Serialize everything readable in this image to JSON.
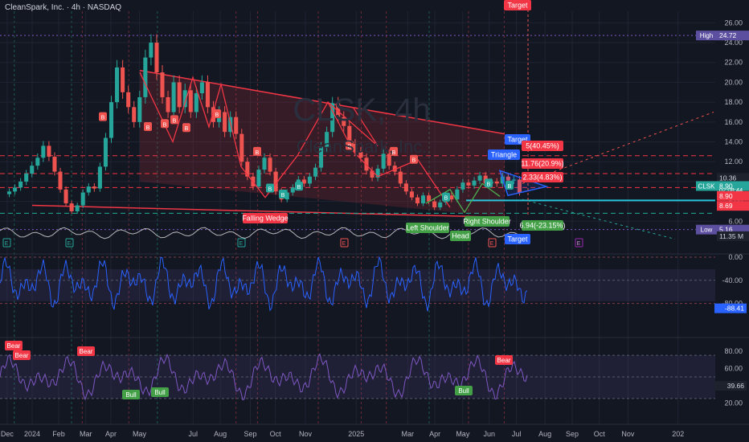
{
  "header": {
    "title": "CleanSpark, Inc. · 4h · NASDAQ"
  },
  "watermark": {
    "line1": "CLSK, 4h",
    "line2": "CleanSpark, Inc."
  },
  "colors": {
    "bg": "#131722",
    "up": "#26a69a",
    "down": "#ef5350",
    "grid": "#1f2433",
    "wedge": "#f23645",
    "blue": "#2962ff",
    "purple": "#7e57c2",
    "text": "#b2b5be"
  },
  "chart_data": [
    {
      "type": "candlestick",
      "ticker": "CLSK",
      "ylim": [
        4,
        27
      ],
      "y_ticks": [
        6,
        8,
        10,
        12,
        14,
        16,
        18,
        20,
        22,
        24,
        26
      ],
      "x_ticks": [
        "Dec",
        "2024",
        "Feb",
        "Mar",
        "Apr",
        "May",
        "Jul",
        "Aug",
        "Sep",
        "Oct",
        "Nov",
        "2025",
        "Mar",
        "Apr",
        "May",
        "Jun",
        "Jul",
        "Aug",
        "Sep",
        "Oct",
        "Nov",
        "202"
      ],
      "x_tick_pos": [
        0.01,
        0.045,
        0.082,
        0.12,
        0.155,
        0.195,
        0.27,
        0.308,
        0.35,
        0.385,
        0.427,
        0.498,
        0.57,
        0.608,
        0.647,
        0.684,
        0.722,
        0.762,
        0.8,
        0.838,
        0.878,
        0.948
      ],
      "close": [
        9.0,
        9.4,
        10.0,
        10.8,
        11.6,
        12.4,
        13.6,
        12.5,
        11.0,
        9.2,
        7.8,
        7.0,
        7.6,
        8.9,
        9.5,
        9.3,
        11.5,
        14.4,
        18.0,
        21.5,
        19.0,
        17.5,
        16.0,
        18.5,
        22.5,
        24.0,
        21.0,
        18.5,
        17.0,
        20.0,
        17.5,
        19.2,
        17.0,
        18.9,
        20.0,
        17.5,
        16.0,
        17.0,
        15.0,
        16.5,
        14.8,
        12.0,
        10.5,
        9.5,
        11.2,
        12.4,
        11.0,
        9.0,
        8.2,
        8.9,
        9.4,
        10.2,
        9.8,
        10.5,
        11.4,
        13.5,
        15.0,
        17.9,
        16.5,
        15.6,
        13.8,
        13.0,
        12.4,
        11.1,
        10.4,
        11.3,
        12.8,
        11.6,
        11.0,
        9.8,
        9.0,
        8.4,
        7.8,
        8.6,
        8.0,
        7.4,
        7.9,
        8.6,
        8.2,
        9.2,
        9.9,
        9.6,
        10.1,
        10.6,
        9.8,
        10.0,
        9.8,
        10.5,
        10.1,
        10.2,
        8.9
      ],
      "price_labels": [
        {
          "text": "High",
          "value": "24.72",
          "type": "high"
        },
        {
          "text": "CLSK",
          "value": "8.90",
          "sub": "02:08:44",
          "type": "last"
        },
        {
          "value": "10.36",
          "type": "resistance"
        },
        {
          "value": "8.90",
          "type": "red"
        },
        {
          "value": "8.69",
          "type": "red"
        },
        {
          "text": "Low",
          "value": "5.16",
          "type": "low"
        },
        {
          "value": "11.35 M",
          "type": "volume"
        }
      ],
      "patterns": [
        "Falling Wedge",
        "Triangle",
        "Left Shoulder",
        "Head",
        "Right Shoulder"
      ],
      "targets": [
        "Target",
        "Target",
        "Target"
      ],
      "target_boxes": [
        "5(40.45%)",
        "11.76(20.9%)",
        "2.33(4.83%)",
        "6.94(-23.15%)"
      ],
      "markers": [
        "B",
        "E"
      ]
    },
    {
      "type": "line",
      "name": "oscillator-1",
      "ylim": [
        -100,
        0
      ],
      "y_ticks": [
        "0.00",
        "-40.00",
        "-80.00"
      ],
      "last_value": "-88.41"
    },
    {
      "type": "line",
      "name": "oscillator-2",
      "ylim": [
        10,
        90
      ],
      "y_ticks": [
        "80.00",
        "60.00",
        "40.00",
        "20.00"
      ],
      "last_value": "39.66",
      "signals": [
        "Bear",
        "Bear",
        "Bear",
        "Bull",
        "Bull",
        "Bear",
        "Bull"
      ]
    }
  ]
}
